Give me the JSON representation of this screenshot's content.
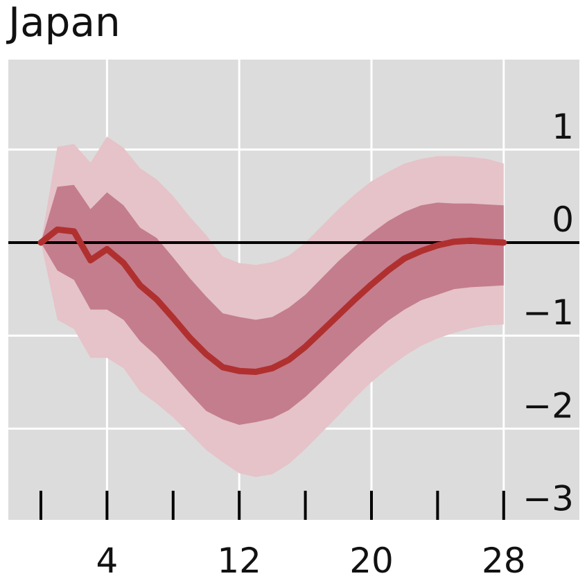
{
  "chart_data": {
    "type": "line",
    "title": "Japan",
    "xlabel": "",
    "ylabel": "",
    "xlim": [
      -0.5,
      34
    ],
    "ylim": [
      -3.05,
      1.95
    ],
    "x_ticks": [
      4,
      12,
      20,
      28
    ],
    "x_tick_labels": [
      "4",
      "12",
      "20",
      "28"
    ],
    "x_minor_ticks": [
      0,
      4,
      8,
      12,
      16,
      20,
      24,
      28
    ],
    "y_ticks": [
      1,
      0,
      -1,
      -2,
      -3
    ],
    "y_tick_labels": [
      "1",
      "0",
      "−1",
      "−2",
      "−3"
    ],
    "y_gridlines": [
      1,
      0,
      -1,
      -2,
      -3
    ],
    "x_gridlines": [
      4,
      12,
      20,
      28
    ],
    "zero_line": 0,
    "grid": true,
    "x": [
      0,
      1,
      2,
      3,
      4,
      5,
      6,
      7,
      8,
      9,
      10,
      11,
      12,
      13,
      14,
      15,
      16,
      17,
      18,
      19,
      20,
      21,
      22,
      23,
      24,
      25,
      26,
      27,
      28
    ],
    "series": [
      {
        "type": "line",
        "values": [
          0,
          0.14,
          0.12,
          -0.19,
          -0.07,
          -0.22,
          -0.46,
          -0.61,
          -0.81,
          -1.02,
          -1.2,
          -1.34,
          -1.38,
          -1.39,
          -1.35,
          -1.26,
          -1.12,
          -0.95,
          -0.78,
          -0.61,
          -0.45,
          -0.3,
          -0.17,
          -0.09,
          -0.03,
          0.01,
          0.02,
          0.01,
          0.0
        ]
      },
      {
        "type": "band",
        "lower": [
          0,
          -0.3,
          -0.4,
          -0.72,
          -0.72,
          -0.83,
          -1.06,
          -1.22,
          -1.42,
          -1.62,
          -1.81,
          -1.9,
          -1.96,
          -1.93,
          -1.89,
          -1.8,
          -1.66,
          -1.49,
          -1.32,
          -1.15,
          -0.99,
          -0.84,
          -0.72,
          -0.62,
          -0.56,
          -0.5,
          -0.48,
          -0.47,
          -0.46
        ],
        "upper": [
          0,
          0.6,
          0.62,
          0.36,
          0.54,
          0.4,
          0.16,
          0.05,
          -0.16,
          -0.38,
          -0.58,
          -0.76,
          -0.8,
          -0.83,
          -0.8,
          -0.7,
          -0.56,
          -0.38,
          -0.2,
          -0.04,
          0.1,
          0.23,
          0.33,
          0.4,
          0.43,
          0.42,
          0.42,
          0.41,
          0.4
        ]
      },
      {
        "type": "band",
        "lower": [
          0,
          -0.83,
          -0.93,
          -1.24,
          -1.24,
          -1.35,
          -1.6,
          -1.73,
          -1.88,
          -2.05,
          -2.23,
          -2.36,
          -2.48,
          -2.52,
          -2.49,
          -2.38,
          -2.22,
          -2.04,
          -1.86,
          -1.67,
          -1.5,
          -1.35,
          -1.22,
          -1.11,
          -1.03,
          -0.97,
          -0.92,
          -0.89,
          -0.88
        ],
        "upper": [
          0,
          1.03,
          1.06,
          0.86,
          1.14,
          1.02,
          0.8,
          0.68,
          0.5,
          0.28,
          0.08,
          -0.15,
          -0.22,
          -0.24,
          -0.21,
          -0.14,
          0.0,
          0.18,
          0.36,
          0.52,
          0.66,
          0.76,
          0.85,
          0.9,
          0.93,
          0.93,
          0.92,
          0.9,
          0.85
        ]
      }
    ],
    "colors": {
      "plot_background": "#dcdcdc",
      "gridline": "#ffffff",
      "zero_line": "#000000",
      "median_line": "#b03030",
      "inner_band": "#c47d8c",
      "outer_band": "#e5c3c9",
      "text": "#111111"
    }
  }
}
